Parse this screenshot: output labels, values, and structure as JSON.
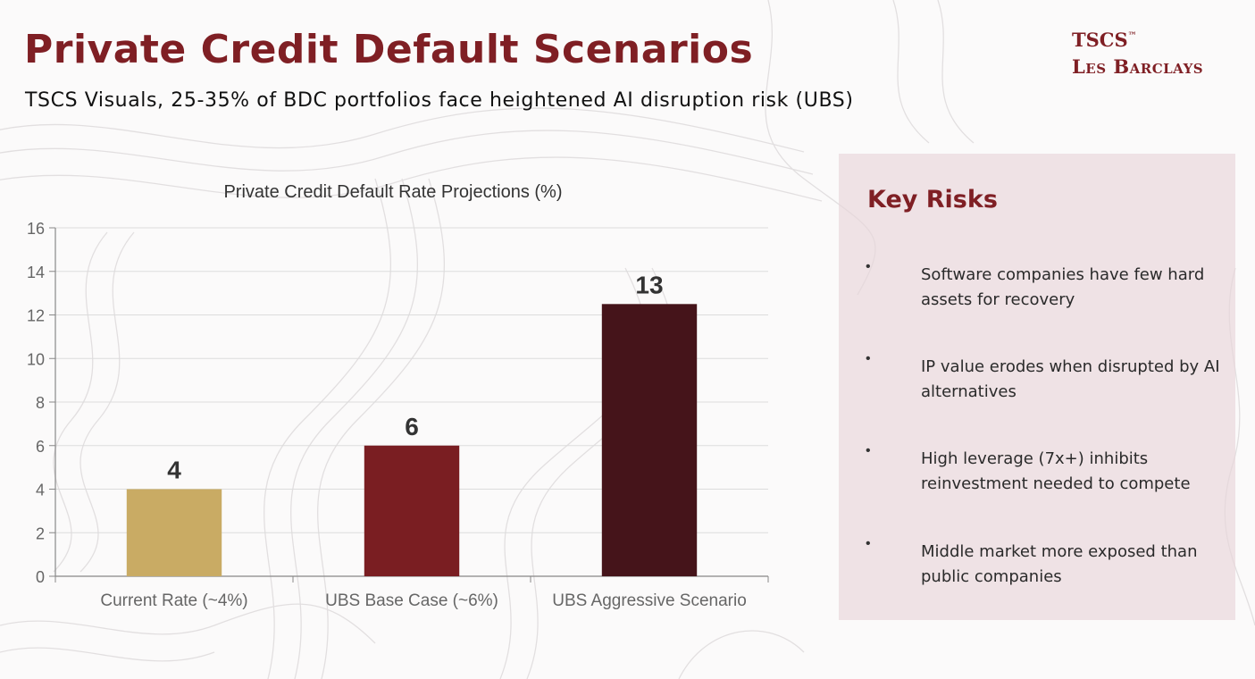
{
  "header": {
    "title": "Private Credit Default Scenarios",
    "subtitle": "TSCS Visuals, 25-35% of BDC portfolios face heightened AI disruption risk (UBS)"
  },
  "brand": {
    "line1": "TSCS",
    "trademark": "™",
    "line2": "Les Barclays"
  },
  "chart_data": {
    "type": "bar",
    "title": "Private Credit Default Rate Projections (%)",
    "xlabel": "",
    "ylabel": "",
    "categories": [
      "Current Rate (~4%)",
      "UBS Base Case (~6%)",
      "UBS Aggressive Scenario"
    ],
    "values": [
      4,
      6,
      12.5
    ],
    "data_labels": [
      "4",
      "6",
      "13"
    ],
    "colors": [
      "#c9ab64",
      "#7a1e22",
      "#45141a"
    ],
    "ylim": [
      0,
      16
    ],
    "yticks": [
      0,
      2,
      4,
      6,
      8,
      10,
      12,
      14,
      16
    ],
    "grid": true,
    "legend": "none"
  },
  "key_risks": {
    "title": "Key Risks",
    "bullet": "•",
    "items": [
      "Software companies have few hard assets for recovery",
      "IP value erodes when disrupted by AI alternatives",
      "High leverage (7x+) inhibits reinvestment needed to compete",
      "Middle market more exposed than public companies"
    ]
  },
  "colors": {
    "accent": "#7f1f24",
    "panel": "#ecdde0"
  }
}
